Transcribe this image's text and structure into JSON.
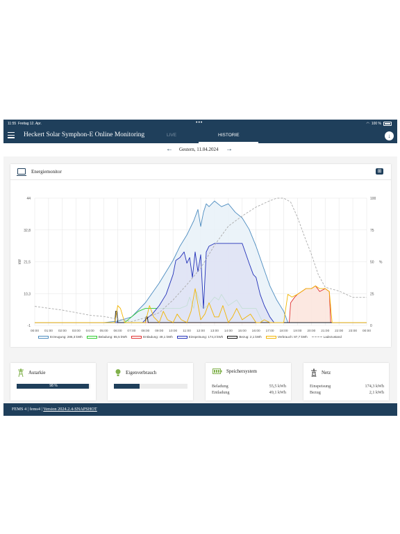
{
  "status_bar": {
    "time": "11:55",
    "date": "Freitag 12. Apr.",
    "dots": "•••",
    "battery": "100 %"
  },
  "header": {
    "title": "Heckert Solar Symphon-E Online Monitoring",
    "tabs": [
      "LIVE",
      "HISTORIE"
    ],
    "active_tab": "HISTORIE",
    "download_icon": "download-icon"
  },
  "date_nav": {
    "label": "Gestern, 11.04.2024",
    "prev_icon": "arrow-left-icon",
    "next_icon": "arrow-right-icon"
  },
  "energy_monitor": {
    "title": "Energiemonitor",
    "icon": "monitor-icon",
    "expand_icon": "expand-icon"
  },
  "chart_data": {
    "type": "line",
    "title": "",
    "y_left_label": "kW",
    "y_right_label": "%",
    "y_left_ticks": [
      "44",
      "32,8",
      "21,5",
      "10,3",
      "-1"
    ],
    "y_right_ticks": [
      "100",
      "75",
      "50",
      "25",
      "0"
    ],
    "y_left_range": [
      -1,
      44
    ],
    "y_right_range": [
      0,
      100
    ],
    "x_ticks": [
      "00:00",
      "01:00",
      "02:00",
      "03:00",
      "04:00",
      "05:00",
      "06:00",
      "07:00",
      "08:00",
      "09:00",
      "10:00",
      "11:00",
      "12:00",
      "13:00",
      "14:00",
      "15:00",
      "16:00",
      "17:00",
      "18:00",
      "19:00",
      "20:00",
      "21:00",
      "22:00",
      "23:00",
      "00:00"
    ],
    "grid": true,
    "legend_position": "bottom",
    "series": [
      {
        "name": "Erzeugung: 286,3 kWh",
        "color": "#4b8bbf",
        "fill": "#e8f1f8",
        "axis": "left",
        "x": [
          0,
          5,
          6,
          7,
          8,
          9,
          10,
          10.5,
          11,
          11.5,
          11.8,
          12,
          12.2,
          12.4,
          12.6,
          13,
          13.5,
          14,
          14.5,
          15,
          15.5,
          16,
          16.5,
          17,
          17.5,
          18,
          18.3,
          24
        ],
        "y": [
          0,
          0,
          0.5,
          2,
          7,
          14,
          22,
          27,
          31,
          36,
          40,
          34,
          39,
          42,
          41,
          43,
          41,
          42,
          39,
          37,
          33,
          27,
          20,
          13,
          8,
          4,
          0,
          0
        ]
      },
      {
        "name": "Beladung: 55,5 kWh",
        "color": "#2ecc2e",
        "axis": "left",
        "x": [
          0,
          5.5,
          6.5,
          7,
          7.5,
          8,
          8.5,
          9,
          9.5,
          10,
          10.5,
          11,
          11.2,
          11.5,
          11.7,
          12,
          12.2,
          12.5,
          13,
          13.3,
          13.5,
          14,
          14.3,
          14.6,
          15,
          15.5,
          16,
          16.2,
          16.5,
          24
        ],
        "y": [
          0,
          0,
          0,
          2,
          4,
          5,
          5,
          5,
          5,
          5,
          5,
          6,
          9,
          5,
          11,
          6,
          5,
          6,
          9,
          8,
          10,
          6,
          7,
          8,
          5,
          5,
          5,
          3,
          0,
          0
        ]
      },
      {
        "name": "Entladung: 49,1 kWh",
        "color": "#e03030",
        "fill": "#fbe4dc",
        "axis": "left",
        "x": [
          0,
          18.4,
          18.5,
          18.8,
          19,
          19.3,
          19.6,
          20,
          20.3,
          20.6,
          21,
          21.3,
          21.4,
          24
        ],
        "y": [
          0,
          0,
          7,
          9,
          10,
          11,
          12,
          12,
          13,
          11,
          12,
          11,
          0,
          0
        ]
      },
      {
        "name": "Einspeisung: 174,3 kWh",
        "color": "#2130b8",
        "fill": "#dfe2f5",
        "axis": "left",
        "x": [
          0,
          7.8,
          8,
          8.5,
          9,
          9.5,
          10,
          10.2,
          10.5,
          10.8,
          11,
          11.2,
          11.4,
          11.6,
          11.8,
          12,
          12.2,
          12.4,
          12.6,
          13,
          14,
          15,
          15.5,
          15.8,
          16,
          16.3,
          16.6,
          17,
          17.3,
          24
        ],
        "y": [
          0,
          0,
          1,
          3,
          6,
          10,
          17,
          22,
          23,
          25,
          21,
          23,
          16,
          25,
          18,
          24,
          5,
          25,
          27,
          28,
          28,
          28,
          21,
          17,
          16,
          10,
          6,
          2,
          0,
          0
        ]
      },
      {
        "name": "Bezug: 2,1 kWh",
        "color": "#111111",
        "axis": "left",
        "x": [
          0,
          5.8,
          5.85,
          5.95,
          6.0,
          8.0,
          8.05,
          8.15,
          8.2,
          24
        ],
        "y": [
          0,
          0,
          4,
          4,
          0,
          0,
          2,
          2,
          0,
          0
        ]
      },
      {
        "name": "Verbrauch: 87,7 kWh",
        "color": "#f2b400",
        "axis": "left",
        "x": [
          0,
          1,
          2,
          3,
          4,
          5,
          5.8,
          6,
          6.2,
          6.5,
          7,
          7.5,
          8,
          8.3,
          8.6,
          9,
          9.3,
          9.6,
          10,
          10.3,
          10.6,
          11,
          11.3,
          11.6,
          12,
          12.3,
          12.6,
          13,
          13.3,
          13.6,
          14,
          14.3,
          14.6,
          15,
          15.3,
          15.6,
          16,
          16.3,
          16.6,
          17,
          17.3,
          17.6,
          18,
          18.3,
          18.6,
          19,
          19.3,
          19.6,
          20,
          20.3,
          20.6,
          21,
          21.3,
          21.5,
          22,
          23,
          24
        ],
        "y": [
          0,
          0,
          0,
          0,
          0,
          0,
          0,
          6,
          5,
          0,
          0,
          0,
          0,
          6,
          2,
          0,
          4,
          1,
          0,
          3,
          1,
          0,
          4,
          12,
          1,
          3,
          7,
          2,
          2,
          6,
          0,
          2,
          5,
          1,
          2,
          3,
          0,
          0,
          1,
          0,
          0,
          0,
          0,
          10,
          9,
          10,
          11,
          12,
          12,
          13,
          12,
          12,
          11,
          0,
          0,
          0,
          0
        ]
      },
      {
        "name": "Ladezustand",
        "color": "#aaaaaa",
        "dashed": true,
        "axis": "right",
        "x": [
          0,
          2,
          3,
          4,
          5,
          6,
          7,
          8,
          9,
          10,
          11,
          12,
          13,
          14,
          15,
          16,
          17,
          17.5,
          18,
          18.5,
          19,
          19.5,
          20,
          20.5,
          21,
          22,
          23,
          24
        ],
        "y": [
          15,
          12,
          10,
          8,
          7,
          5,
          3,
          6,
          10,
          20,
          32,
          45,
          63,
          78,
          86,
          93,
          98,
          100,
          100,
          97,
          85,
          70,
          56,
          40,
          30,
          27,
          22,
          22
        ]
      }
    ]
  },
  "tiles": {
    "autarkie": {
      "title": "Autarkie",
      "icon": "tower-icon",
      "value": 0.98,
      "label": "98 %"
    },
    "eigenverbrauch": {
      "title": "Eigenverbrauch",
      "icon": "bulb-icon",
      "value": 0.35
    },
    "speicher": {
      "title": "Speichersystem",
      "icon": "battery-icon",
      "rows": [
        {
          "key": "Beladung",
          "value": "55,5 kWh"
        },
        {
          "key": "Entladung",
          "value": "49,1 kWh"
        }
      ]
    },
    "netz": {
      "title": "Netz",
      "icon": "pylon-icon",
      "rows": [
        {
          "key": "Einspeisung",
          "value": "174,3 kWh"
        },
        {
          "key": "Bezug",
          "value": "2,1 kWh"
        }
      ]
    }
  },
  "footer": {
    "prefix": "FEMS 4 | fems4 | ",
    "version_link": "Version 2024.2.4-SNAPSHOT"
  }
}
